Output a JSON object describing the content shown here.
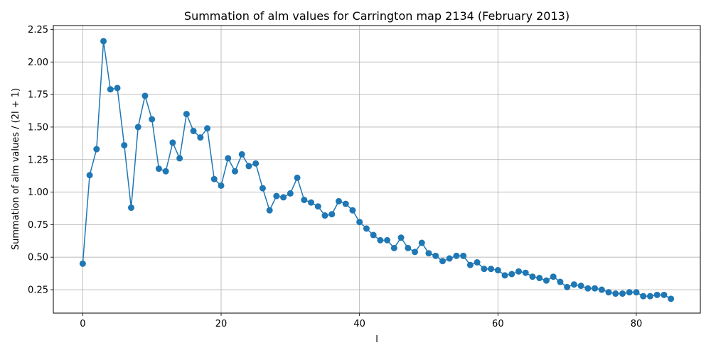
{
  "chart_data": {
    "type": "line",
    "title": "Summation of alm values for Carrington map 2134 (February 2013)",
    "xlabel": "l",
    "ylabel": "Summation of alm values / (2l + 1)",
    "xlim": [
      -4.25,
      89.25
    ],
    "ylim": [
      0.07,
      2.28
    ],
    "xticks": [
      0,
      20,
      40,
      60,
      80
    ],
    "yticks": [
      0.25,
      0.5,
      0.75,
      1.0,
      1.25,
      1.5,
      1.75,
      2.0,
      2.25
    ],
    "ytick_labels": [
      "0.25",
      "0.50",
      "0.75",
      "1.00",
      "1.25",
      "1.50",
      "1.75",
      "2.00",
      "2.25"
    ],
    "grid": true,
    "marker": "circle",
    "color": "#1f77b4",
    "x": [
      0,
      1,
      2,
      3,
      4,
      5,
      6,
      7,
      8,
      9,
      10,
      11,
      12,
      13,
      14,
      15,
      16,
      17,
      18,
      19,
      20,
      21,
      22,
      23,
      24,
      25,
      26,
      27,
      28,
      29,
      30,
      31,
      32,
      33,
      34,
      35,
      36,
      37,
      38,
      39,
      40,
      41,
      42,
      43,
      44,
      45,
      46,
      47,
      48,
      49,
      50,
      51,
      52,
      53,
      54,
      55,
      56,
      57,
      58,
      59,
      60,
      61,
      62,
      63,
      64,
      65,
      66,
      67,
      68,
      69,
      70,
      71,
      72,
      73,
      74,
      75,
      76,
      77,
      78,
      79,
      80,
      81,
      82,
      83,
      84,
      85
    ],
    "y": [
      0.45,
      1.13,
      1.33,
      2.16,
      1.79,
      1.8,
      1.36,
      0.88,
      1.5,
      1.74,
      1.56,
      1.18,
      1.16,
      1.38,
      1.26,
      1.6,
      1.47,
      1.42,
      1.49,
      1.1,
      1.05,
      1.26,
      1.16,
      1.29,
      1.2,
      1.22,
      1.03,
      0.86,
      0.97,
      0.96,
      0.99,
      1.11,
      0.94,
      0.92,
      0.89,
      0.82,
      0.83,
      0.93,
      0.91,
      0.86,
      0.77,
      0.72,
      0.67,
      0.63,
      0.63,
      0.57,
      0.65,
      0.57,
      0.54,
      0.61,
      0.53,
      0.51,
      0.47,
      0.49,
      0.51,
      0.51,
      0.44,
      0.46,
      0.41,
      0.41,
      0.4,
      0.36,
      0.37,
      0.39,
      0.38,
      0.35,
      0.34,
      0.32,
      0.35,
      0.31,
      0.27,
      0.29,
      0.28,
      0.26,
      0.26,
      0.25,
      0.23,
      0.22,
      0.22,
      0.23,
      0.23,
      0.2,
      0.2,
      0.21,
      0.21,
      0.18
    ]
  }
}
